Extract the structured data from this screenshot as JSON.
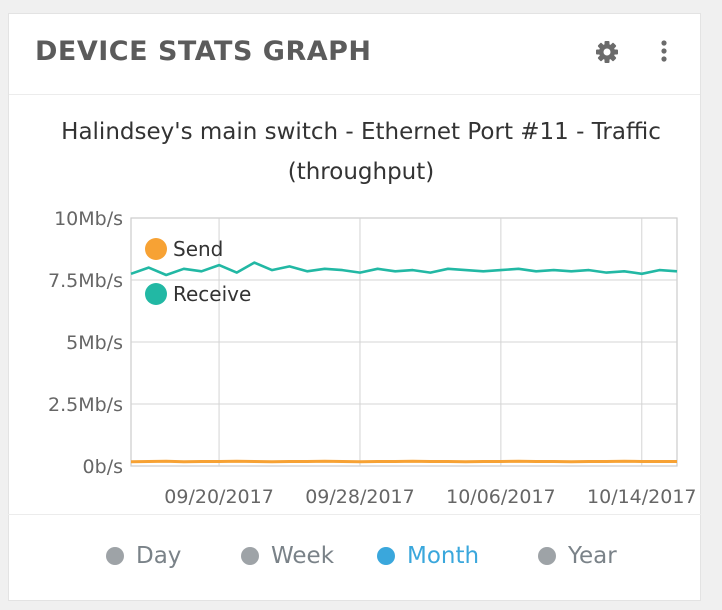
{
  "widget": {
    "title": "DEVICE STATS GRAPH",
    "icons": [
      "gear-icon",
      "more-vertical-icon"
    ]
  },
  "chart": {
    "title_line1": "Halindsey's main switch - Ethernet Port #11 - Traffic",
    "title_line2": "(throughput)"
  },
  "range_selector": {
    "options": [
      "Day",
      "Week",
      "Month",
      "Year"
    ],
    "selected": "Month"
  },
  "colors": {
    "send": "#f7a234",
    "receive": "#22b8a4",
    "accent": "#3aa7dc",
    "inactive": "#9ea3a7"
  },
  "chart_data": {
    "type": "line",
    "title": "Halindsey's main switch - Ethernet Port #11 - Traffic (throughput)",
    "xlabel": "",
    "ylabel": "",
    "x_range": [
      "2017-09-15",
      "2017-10-16"
    ],
    "x_ticks": [
      "09/20/2017",
      "09/28/2017",
      "10/06/2017",
      "10/14/2017"
    ],
    "y_ticks": [
      "0b/s",
      "2.5Mb/s",
      "5Mb/s",
      "7.5Mb/s",
      "10Mb/s"
    ],
    "ylim": [
      0,
      10
    ],
    "y_unit": "Mb/s",
    "grid": true,
    "legend_position": "top-left",
    "series": [
      {
        "name": "Send",
        "values": [
          0.17,
          0.18,
          0.19,
          0.17,
          0.18,
          0.18,
          0.19,
          0.18,
          0.17,
          0.18,
          0.18,
          0.19,
          0.18,
          0.17,
          0.18,
          0.18,
          0.19,
          0.18,
          0.18,
          0.17,
          0.18,
          0.18,
          0.19,
          0.18,
          0.18,
          0.17,
          0.18,
          0.18,
          0.19,
          0.18,
          0.18,
          0.18
        ]
      },
      {
        "name": "Receive",
        "values": [
          7.75,
          8.0,
          7.7,
          7.95,
          7.85,
          8.1,
          7.8,
          8.2,
          7.9,
          8.05,
          7.85,
          7.95,
          7.9,
          7.8,
          7.95,
          7.85,
          7.9,
          7.8,
          7.95,
          7.9,
          7.85,
          7.9,
          7.95,
          7.85,
          7.9,
          7.85,
          7.9,
          7.8,
          7.85,
          7.75,
          7.9,
          7.85
        ]
      }
    ]
  }
}
